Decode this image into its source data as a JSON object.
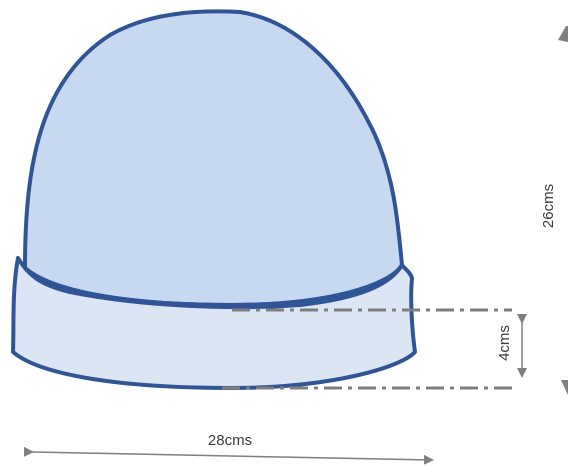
{
  "diagram": {
    "measurements": {
      "height_label": "26cms",
      "band_label": "4cms",
      "width_label": "28cms"
    },
    "colors": {
      "crown_fill": "#c6d9f1",
      "band_fill": "#dbe5f3",
      "outline": "#2f5597",
      "dimension_dashed": "#7f7f7f",
      "dimension_arrow": "#7f7f7f"
    }
  }
}
